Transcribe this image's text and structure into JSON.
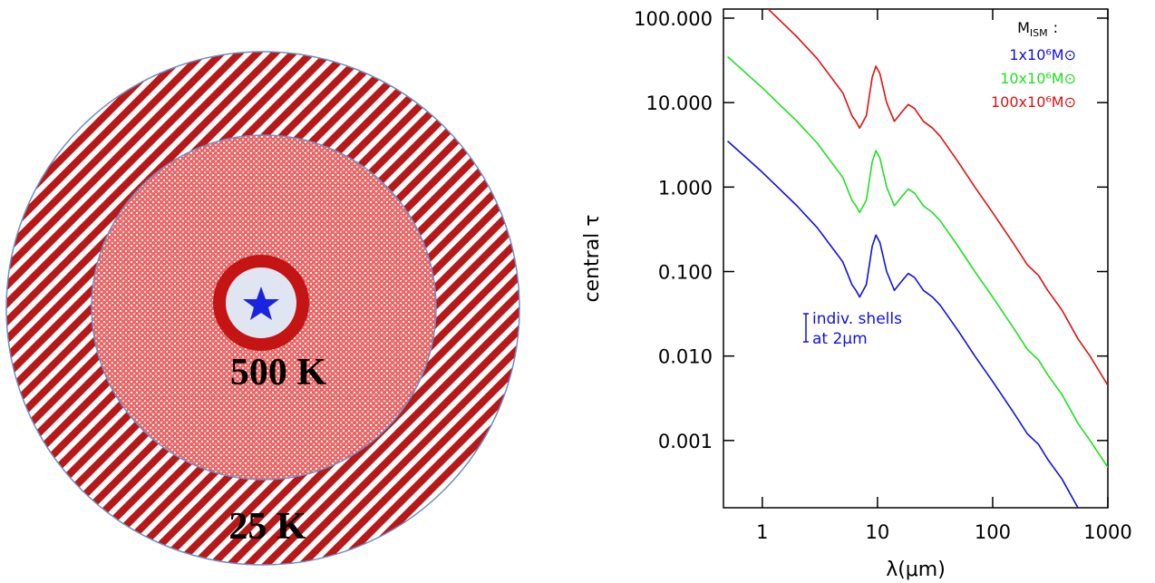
{
  "diagram": {
    "labels": [
      "500 K",
      "25 K"
    ]
  },
  "chart_data": {
    "type": "line",
    "xlabel": "λ(μm)",
    "ylabel": "central τ",
    "xscale": "log",
    "yscale": "log",
    "xlim": [
      0.46,
      1000
    ],
    "ylim": [
      0.00016,
      128
    ],
    "xticks": [
      1,
      10,
      100,
      1000
    ],
    "yticks": [
      {
        "value": 100,
        "label": "100.000"
      },
      {
        "value": 10,
        "label": "10.000"
      },
      {
        "value": 1,
        "label": "1.000"
      },
      {
        "value": 0.1,
        "label": "0.100"
      },
      {
        "value": 0.01,
        "label": "0.010"
      },
      {
        "value": 0.001,
        "label": "0.001"
      }
    ],
    "legend_title": [
      "M",
      "ISM",
      ":"
    ],
    "legend_position": "upper right",
    "annotation": [
      "indiv. shells",
      "at 2μm"
    ],
    "annotation_color": "#1010e0",
    "x": [
      0.5,
      1,
      2,
      3,
      5,
      6,
      6.5,
      7,
      8,
      9,
      9.7,
      10.5,
      12,
      14,
      16,
      18.5,
      21,
      25,
      30,
      35,
      50,
      70,
      100,
      150,
      200,
      250,
      300,
      400,
      550,
      700,
      1000
    ],
    "series": [
      {
        "name": "1x10⁶M⊙",
        "color": "#1010e0",
        "values": [
          3.5,
          1.5,
          0.6,
          0.33,
          0.13,
          0.07,
          0.06,
          0.05,
          0.07,
          0.2,
          0.27,
          0.22,
          0.1,
          0.06,
          0.075,
          0.095,
          0.085,
          0.06,
          0.05,
          0.04,
          0.02,
          0.01,
          0.005,
          0.0022,
          0.0012,
          0.0009,
          0.0006,
          0.00035,
          0.00016,
          null,
          null
        ]
      },
      {
        "name": "10x10⁶M⊙",
        "color": "#20e020",
        "values": [
          35,
          15,
          6,
          3.3,
          1.3,
          0.7,
          0.6,
          0.5,
          0.7,
          2,
          2.7,
          2.2,
          1,
          0.6,
          0.75,
          0.95,
          0.85,
          0.6,
          0.5,
          0.4,
          0.2,
          0.1,
          0.05,
          0.022,
          0.012,
          0.009,
          0.006,
          0.0035,
          0.0016,
          0.001,
          0.00048
        ]
      },
      {
        "name": "100x10⁶M⊙",
        "color": "#e01010",
        "values": [
          null,
          150,
          60,
          33,
          13,
          7,
          6,
          5,
          7,
          20,
          27,
          22,
          10,
          6,
          7.5,
          9.5,
          8.5,
          6,
          5,
          4,
          2,
          1,
          0.5,
          0.22,
          0.12,
          0.09,
          0.06,
          0.035,
          0.016,
          0.01,
          0.0045
        ]
      }
    ]
  }
}
